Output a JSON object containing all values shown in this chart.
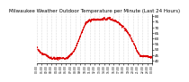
{
  "title": "Milwaukee Weather Outdoor Temperature per Minute (Last 24 Hours)",
  "title_fontsize": 4.0,
  "bg_color": "#ffffff",
  "line_color": "#dd0000",
  "grid_color": "#aaaaaa",
  "y_ticks": [
    40,
    45,
    50,
    55,
    60,
    65,
    70,
    75,
    80
  ],
  "ylim": [
    38,
    82
  ],
  "num_points": 1440,
  "x_tick_count": 25,
  "temp_profile": [
    52,
    51,
    50,
    50,
    49,
    49,
    48,
    48,
    47,
    47,
    47,
    46,
    46,
    46,
    46,
    46,
    46,
    46,
    46,
    45,
    45,
    45,
    44,
    44,
    44,
    44,
    43,
    43,
    43,
    42,
    42,
    42,
    42,
    42,
    42,
    42,
    42,
    42,
    42,
    42,
    42,
    42,
    42,
    42,
    42,
    42,
    42,
    42,
    42,
    42,
    42,
    42,
    42,
    42,
    42,
    42,
    42,
    42,
    42,
    42,
    42,
    42,
    42,
    42,
    42,
    42,
    42,
    42,
    43,
    43,
    43,
    44,
    44,
    44,
    45,
    45,
    46,
    46,
    47,
    47,
    48,
    48,
    49,
    50,
    50,
    51,
    52,
    53,
    54,
    55,
    56,
    57,
    58,
    59,
    60,
    61,
    62,
    63,
    64,
    65,
    66,
    67,
    68,
    69,
    70,
    71,
    72,
    73,
    73,
    74,
    74,
    75,
    75,
    75,
    76,
    76,
    76,
    76,
    76,
    76,
    76,
    77,
    77,
    77,
    77,
    77,
    77,
    77,
    77,
    77,
    77,
    77,
    77,
    77,
    77,
    77,
    77,
    77,
    77,
    77,
    77,
    77,
    77,
    77,
    77,
    77,
    77,
    77,
    78,
    78,
    78,
    77,
    77,
    77,
    77,
    77,
    77,
    78,
    78,
    78,
    78,
    78,
    78,
    77,
    77,
    77,
    77,
    77,
    77,
    76,
    76,
    76,
    76,
    76,
    76,
    76,
    75,
    75,
    75,
    74,
    74,
    74,
    73,
    73,
    73,
    72,
    72,
    72,
    71,
    71,
    71,
    70,
    70,
    69,
    69,
    68,
    68,
    67,
    67,
    66,
    66,
    65,
    65,
    64,
    64,
    63,
    62,
    62,
    61,
    60,
    59,
    58,
    57,
    57,
    56,
    55,
    54,
    53,
    52,
    51,
    50,
    49,
    48,
    48,
    47,
    46,
    46,
    45,
    45,
    44,
    44,
    44,
    44,
    44,
    44,
    44,
    44,
    44,
    44,
    44,
    44,
    44,
    44,
    44,
    44,
    44,
    44,
    43,
    43,
    43,
    43,
    43,
    43,
    43,
    43,
    43
  ]
}
